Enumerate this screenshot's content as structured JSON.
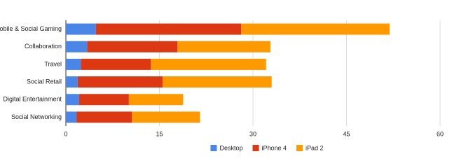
{
  "chart_data": {
    "type": "stacked-bar-horizontal",
    "categories": [
      "Mobile & Social Gaming",
      "Collaboration",
      "Travel",
      "Social Retail",
      "Digital Entertainment",
      "Social Networking"
    ],
    "series": [
      {
        "name": "Desktop",
        "color": "#4a86e8",
        "values": [
          4.8,
          3.4,
          2.4,
          1.9,
          2.1,
          1.7
        ]
      },
      {
        "name": "iPhone 4",
        "color": "#dc3912",
        "values": [
          23.3,
          14.5,
          11.2,
          13.6,
          8.0,
          8.9
        ]
      },
      {
        "name": "iPad 2",
        "color": "#ff9900",
        "values": [
          23.8,
          14.9,
          18.5,
          17.5,
          8.7,
          10.9
        ]
      }
    ],
    "xlim": [
      0,
      60
    ],
    "xticks": [
      0,
      15,
      30,
      45,
      60
    ],
    "grid": true,
    "legend": "bottom"
  }
}
